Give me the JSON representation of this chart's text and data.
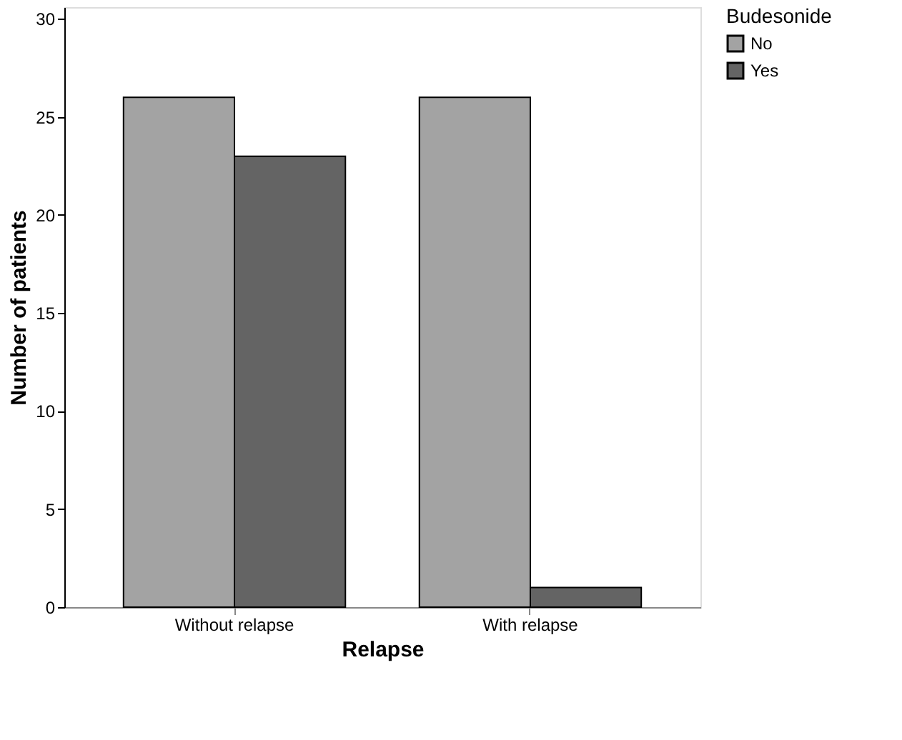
{
  "chart_data": {
    "type": "bar",
    "xlabel": "Relapse",
    "ylabel": "Number of patients",
    "legend_title": "Budesonide",
    "categories": [
      "Without relapse",
      "With relapse"
    ],
    "series": [
      {
        "name": "No",
        "color": "#a3a3a3",
        "values": [
          26,
          26
        ]
      },
      {
        "name": "Yes",
        "color": "#646464",
        "values": [
          23,
          1
        ]
      }
    ],
    "ylim": [
      0,
      30.6
    ],
    "yticks": [
      0,
      5,
      10,
      15,
      20,
      25,
      30
    ],
    "grid": false,
    "legend": "top right"
  }
}
